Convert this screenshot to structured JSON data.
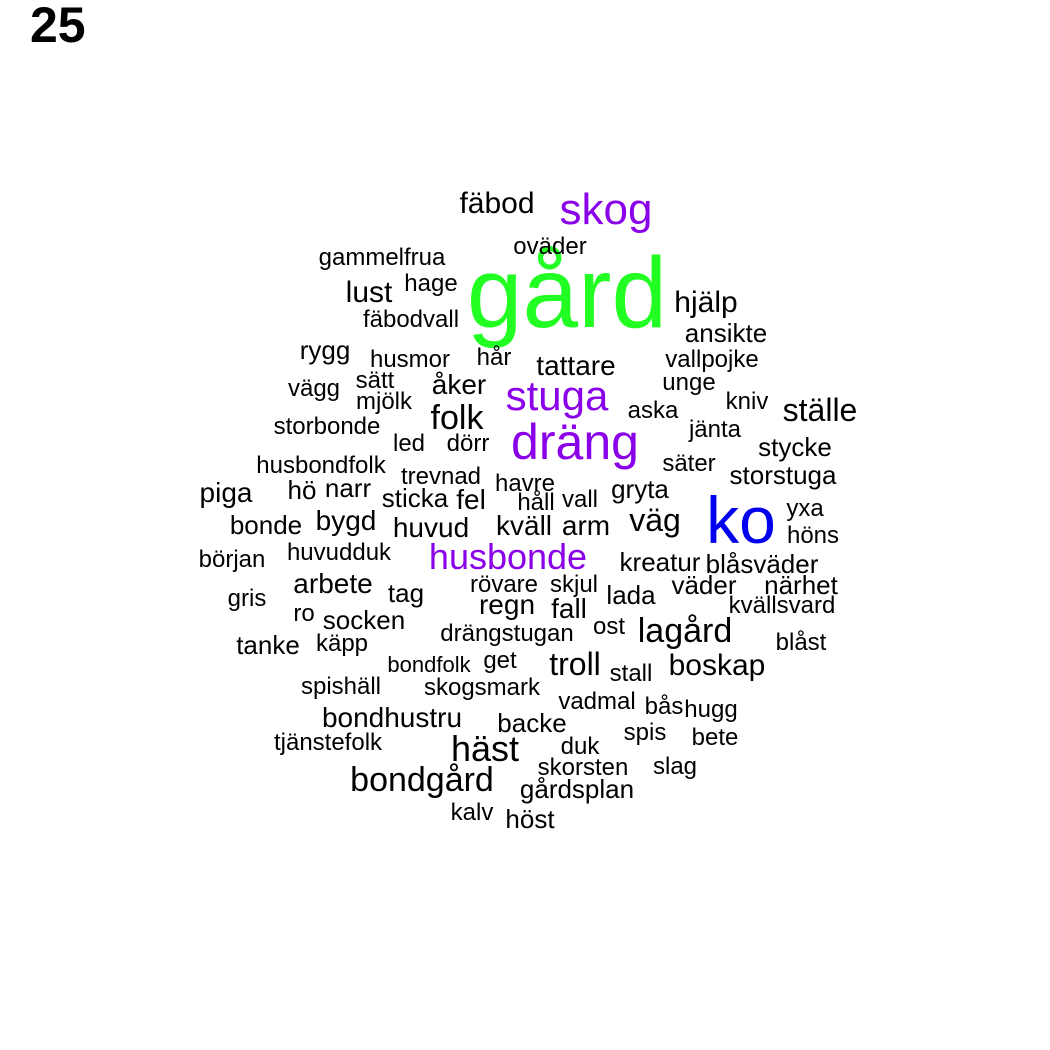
{
  "page_number": "25",
  "word_cloud": {
    "words": [
      {
        "text": "gård",
        "color": "#22ff22"
      },
      {
        "text": "ko",
        "color": "#0000ee"
      },
      {
        "text": "dräng",
        "color": "#8a00e8"
      },
      {
        "text": "stuga",
        "color": "#8a00e8"
      },
      {
        "text": "husbonde",
        "color": "#8a00e8"
      },
      {
        "text": "skog",
        "color": "#8a00e8"
      },
      {
        "text": "fäbod",
        "color": "#000000"
      },
      {
        "text": "oväder",
        "color": "#000000"
      },
      {
        "text": "gammelfrua",
        "color": "#000000"
      },
      {
        "text": "hage",
        "color": "#000000"
      },
      {
        "text": "lust",
        "color": "#000000"
      },
      {
        "text": "hjälp",
        "color": "#000000"
      },
      {
        "text": "fäbodvall",
        "color": "#000000"
      },
      {
        "text": "ansikte",
        "color": "#000000"
      },
      {
        "text": "rygg",
        "color": "#000000"
      },
      {
        "text": "husmor",
        "color": "#000000"
      },
      {
        "text": "hår",
        "color": "#000000"
      },
      {
        "text": "tattare",
        "color": "#000000"
      },
      {
        "text": "vallpojke",
        "color": "#000000"
      },
      {
        "text": "sätt",
        "color": "#000000"
      },
      {
        "text": "unge",
        "color": "#000000"
      },
      {
        "text": "vägg",
        "color": "#000000"
      },
      {
        "text": "åker",
        "color": "#000000"
      },
      {
        "text": "mjölk",
        "color": "#000000"
      },
      {
        "text": "kniv",
        "color": "#000000"
      },
      {
        "text": "ställe",
        "color": "#000000"
      },
      {
        "text": "aska",
        "color": "#000000"
      },
      {
        "text": "folk",
        "color": "#000000"
      },
      {
        "text": "storbonde",
        "color": "#000000"
      },
      {
        "text": "jänta",
        "color": "#000000"
      },
      {
        "text": "led",
        "color": "#000000"
      },
      {
        "text": "dörr",
        "color": "#000000"
      },
      {
        "text": "stycke",
        "color": "#000000"
      },
      {
        "text": "husbondfolk",
        "color": "#000000"
      },
      {
        "text": "säter",
        "color": "#000000"
      },
      {
        "text": "trevnad",
        "color": "#000000"
      },
      {
        "text": "storstuga",
        "color": "#000000"
      },
      {
        "text": "havre",
        "color": "#000000"
      },
      {
        "text": "piga",
        "color": "#000000"
      },
      {
        "text": "hö",
        "color": "#000000"
      },
      {
        "text": "narr",
        "color": "#000000"
      },
      {
        "text": "sticka",
        "color": "#000000"
      },
      {
        "text": "fel",
        "color": "#000000"
      },
      {
        "text": "håll",
        "color": "#000000"
      },
      {
        "text": "vall",
        "color": "#000000"
      },
      {
        "text": "gryta",
        "color": "#000000"
      },
      {
        "text": "yxa",
        "color": "#000000"
      },
      {
        "text": "bonde",
        "color": "#000000"
      },
      {
        "text": "bygd",
        "color": "#000000"
      },
      {
        "text": "huvud",
        "color": "#000000"
      },
      {
        "text": "kväll",
        "color": "#000000"
      },
      {
        "text": "arm",
        "color": "#000000"
      },
      {
        "text": "väg",
        "color": "#000000"
      },
      {
        "text": "höns",
        "color": "#000000"
      },
      {
        "text": "början",
        "color": "#000000"
      },
      {
        "text": "huvudduk",
        "color": "#000000"
      },
      {
        "text": "kreatur",
        "color": "#000000"
      },
      {
        "text": "blåsväder",
        "color": "#000000"
      },
      {
        "text": "arbete",
        "color": "#000000"
      },
      {
        "text": "rövare",
        "color": "#000000"
      },
      {
        "text": "skjul",
        "color": "#000000"
      },
      {
        "text": "väder",
        "color": "#000000"
      },
      {
        "text": "närhet",
        "color": "#000000"
      },
      {
        "text": "gris",
        "color": "#000000"
      },
      {
        "text": "tag",
        "color": "#000000"
      },
      {
        "text": "regn",
        "color": "#000000"
      },
      {
        "text": "lada",
        "color": "#000000"
      },
      {
        "text": "kvällsvard",
        "color": "#000000"
      },
      {
        "text": "fall",
        "color": "#000000"
      },
      {
        "text": "ro",
        "color": "#000000"
      },
      {
        "text": "socken",
        "color": "#000000"
      },
      {
        "text": "ost",
        "color": "#000000"
      },
      {
        "text": "lagård",
        "color": "#000000"
      },
      {
        "text": "tanke",
        "color": "#000000"
      },
      {
        "text": "käpp",
        "color": "#000000"
      },
      {
        "text": "drängstugan",
        "color": "#000000"
      },
      {
        "text": "blåst",
        "color": "#000000"
      },
      {
        "text": "bondfolk",
        "color": "#000000"
      },
      {
        "text": "get",
        "color": "#000000"
      },
      {
        "text": "troll",
        "color": "#000000"
      },
      {
        "text": "stall",
        "color": "#000000"
      },
      {
        "text": "boskap",
        "color": "#000000"
      },
      {
        "text": "spishäll",
        "color": "#000000"
      },
      {
        "text": "skogsmark",
        "color": "#000000"
      },
      {
        "text": "vadmal",
        "color": "#000000"
      },
      {
        "text": "bås",
        "color": "#000000"
      },
      {
        "text": "hugg",
        "color": "#000000"
      },
      {
        "text": "bondhustru",
        "color": "#000000"
      },
      {
        "text": "backe",
        "color": "#000000"
      },
      {
        "text": "spis",
        "color": "#000000"
      },
      {
        "text": "tjänstefolk",
        "color": "#000000"
      },
      {
        "text": "bete",
        "color": "#000000"
      },
      {
        "text": "häst",
        "color": "#000000"
      },
      {
        "text": "duk",
        "color": "#000000"
      },
      {
        "text": "skorsten",
        "color": "#000000"
      },
      {
        "text": "slag",
        "color": "#000000"
      },
      {
        "text": "bondgård",
        "color": "#000000"
      },
      {
        "text": "gårdsplan",
        "color": "#000000"
      },
      {
        "text": "kalv",
        "color": "#000000"
      },
      {
        "text": "höst",
        "color": "#000000"
      }
    ]
  }
}
